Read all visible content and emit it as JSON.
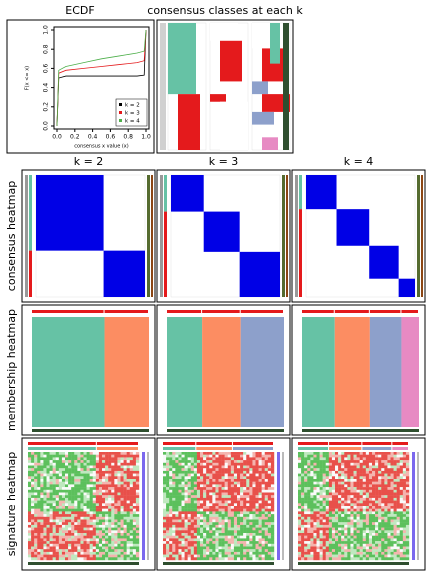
{
  "headers": {
    "ecdf": "ECDF",
    "classes": "consensus classes at each k"
  },
  "chart_data": {
    "type": "line",
    "x_label": "consensus x value (x)",
    "y_label": "F(x <= x)",
    "x": [
      0,
      0.02,
      0.1,
      0.3,
      0.5,
      0.7,
      0.9,
      0.98,
      1
    ],
    "series": [
      {
        "name": "k = 2",
        "color": "#000000",
        "values": [
          0,
          0.5,
          0.52,
          0.52,
          0.52,
          0.52,
          0.52,
          0.53,
          1
        ]
      },
      {
        "name": "k = 3",
        "color": "#e41a1c",
        "values": [
          0,
          0.55,
          0.58,
          0.6,
          0.62,
          0.64,
          0.66,
          0.68,
          1
        ]
      },
      {
        "name": "k = 4",
        "color": "#4daf4a",
        "values": [
          0,
          0.58,
          0.62,
          0.66,
          0.7,
          0.73,
          0.76,
          0.78,
          1
        ]
      }
    ],
    "xlim": [
      0,
      1
    ],
    "ylim": [
      0,
      1
    ],
    "xticks": [
      {
        "value": 0,
        "label": "0.0"
      },
      {
        "value": 0.2,
        "label": "0.2"
      },
      {
        "value": 0.4,
        "label": "0.4"
      },
      {
        "value": 0.6,
        "label": "0.6"
      },
      {
        "value": 0.8,
        "label": "0.8"
      },
      {
        "value": 1,
        "label": "1.0"
      }
    ],
    "yticks": [
      {
        "value": 0,
        "label": "0.0"
      },
      {
        "value": 0.2,
        "label": "0.2"
      },
      {
        "value": 0.4,
        "label": "0.4"
      },
      {
        "value": 0.6,
        "label": "0.6"
      },
      {
        "value": 0.8,
        "label": "0.8"
      },
      {
        "value": 1,
        "label": "1.0"
      }
    ],
    "legend": "bottom-right"
  },
  "columns": [
    "k = 2",
    "k = 3",
    "k = 4"
  ],
  "rows": [
    "consensus heatmap",
    "membership heatmap",
    "signature heatmap"
  ]
}
